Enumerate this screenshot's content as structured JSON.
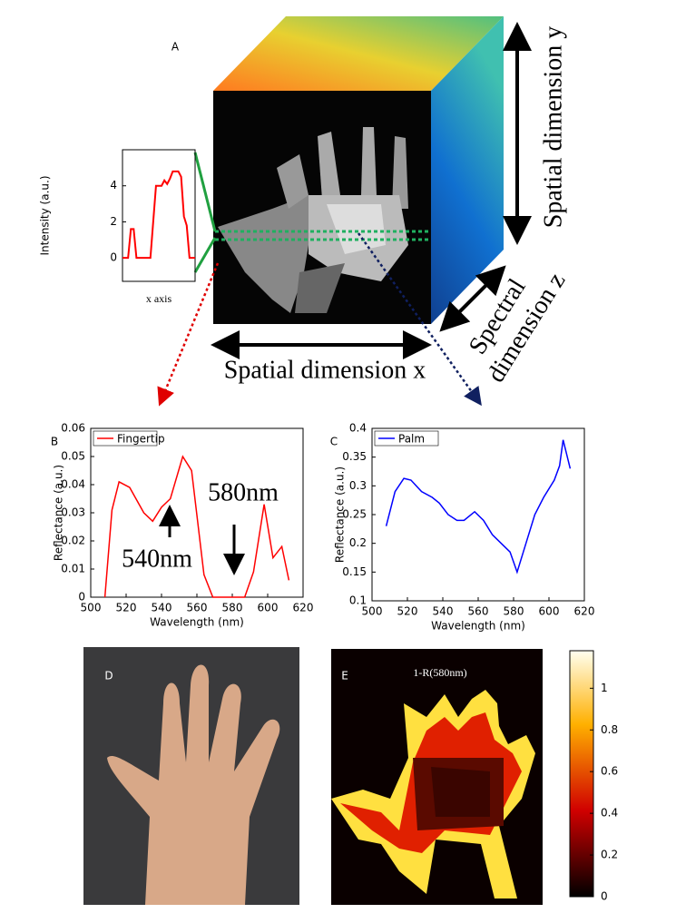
{
  "chart_data": [
    {
      "type": "line",
      "panel": "A",
      "ylabel": "Intensity (a.u.)",
      "xlabel": "x axis",
      "x": [
        0,
        1,
        2,
        3,
        4,
        5,
        6,
        7,
        8,
        9,
        10,
        11,
        12,
        13,
        14,
        15,
        16,
        17,
        18,
        19,
        20,
        21,
        22,
        23,
        24,
        25,
        26
      ],
      "values": [
        0,
        0,
        0,
        1.6,
        1.6,
        0,
        0,
        0,
        0,
        0,
        0,
        2,
        4,
        4,
        4,
        4.3,
        4.1,
        4.4,
        4.8,
        4.8,
        4.8,
        4.5,
        2.3,
        1.8,
        0,
        0,
        0
      ],
      "color": "#ff0000",
      "xlim": [
        0,
        26
      ],
      "ylim": [
        -1.3,
        6
      ],
      "yticks": [
        0,
        2,
        4
      ],
      "annotations": [
        "Spatial dimension y",
        "Spectral",
        "dimension z",
        "Spatial dimension x"
      ]
    },
    {
      "type": "line",
      "panel": "B",
      "xlabel": "Wavelength (nm)",
      "ylabel": "Reflectance (a.u.)",
      "x": [
        508,
        512,
        516,
        522,
        530,
        535,
        540,
        545,
        552,
        557,
        564,
        569,
        575,
        581,
        587,
        592,
        598,
        603,
        608,
        612
      ],
      "series": [
        {
          "name": "Fingertip",
          "color": "#ff0000",
          "values": [
            0,
            0.031,
            0.041,
            0.039,
            0.03,
            0.027,
            0.032,
            0.035,
            0.05,
            0.045,
            0.008,
            0,
            0,
            0,
            0,
            0.009,
            0.033,
            0.014,
            0.018,
            0.006
          ]
        }
      ],
      "xlim": [
        500,
        620
      ],
      "ylim": [
        0,
        0.06
      ],
      "xticks": [
        500,
        520,
        540,
        560,
        580,
        600,
        620
      ],
      "yticks": [
        0,
        0.01,
        0.02,
        0.03,
        0.04,
        0.05,
        0.06
      ],
      "legend": "upper left",
      "annotations": [
        "580nm",
        "540nm"
      ]
    },
    {
      "type": "line",
      "panel": "C",
      "xlabel": "Wavelength (nm)",
      "ylabel": "Reflectance (a.u.)",
      "x": [
        508,
        513,
        518,
        522,
        528,
        534,
        538,
        543,
        548,
        552,
        558,
        563,
        568,
        573,
        578,
        582,
        587,
        592,
        597,
        603,
        606,
        608,
        612
      ],
      "series": [
        {
          "name": "Palm",
          "color": "#0000ff",
          "values": [
            0.23,
            0.29,
            0.313,
            0.31,
            0.29,
            0.28,
            0.27,
            0.25,
            0.24,
            0.24,
            0.255,
            0.24,
            0.215,
            0.2,
            0.185,
            0.15,
            0.2,
            0.25,
            0.28,
            0.31,
            0.335,
            0.38,
            0.33
          ]
        }
      ],
      "xlim": [
        500,
        620
      ],
      "ylim": [
        0.1,
        0.4
      ],
      "xticks": [
        500,
        520,
        540,
        560,
        580,
        600,
        620
      ],
      "yticks": [
        0.1,
        0.15,
        0.2,
        0.25,
        0.3,
        0.35,
        0.4
      ],
      "legend": "upper left"
    },
    {
      "type": "heatmap",
      "panel": "E",
      "title": "1-R(580nm)",
      "colorbar": {
        "ylim": [
          0,
          1.18
        ],
        "yticks": [
          0,
          0.2,
          0.4,
          0.6,
          0.8,
          1
        ]
      }
    }
  ],
  "photo": {
    "panel": "D"
  }
}
